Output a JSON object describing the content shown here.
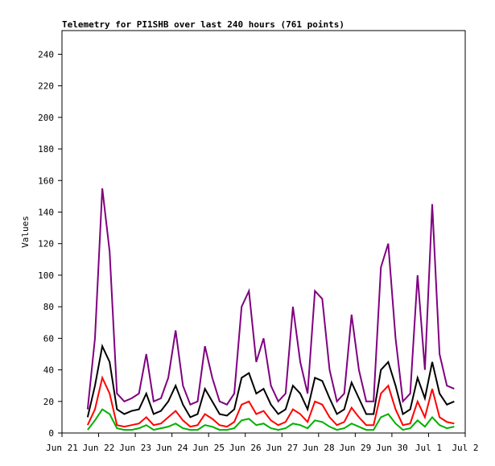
{
  "chart_data": {
    "type": "line",
    "title": "Telemetry for PI1SHB over last 240 hours (761 points)",
    "y_label": "Values",
    "x": [
      0.7,
      0.9,
      1.1,
      1.3,
      1.5,
      1.7,
      1.9,
      2.1,
      2.3,
      2.5,
      2.7,
      2.9,
      3.1,
      3.3,
      3.5,
      3.7,
      3.9,
      4.1,
      4.3,
      4.5,
      4.7,
      4.9,
      5.1,
      5.3,
      5.5,
      5.7,
      5.9,
      6.1,
      6.3,
      6.5,
      6.7,
      6.9,
      7.1,
      7.3,
      7.5,
      7.7,
      7.9,
      8.1,
      8.3,
      8.5,
      8.7,
      8.9,
      9.1,
      9.3,
      9.5,
      9.7,
      9.9,
      10.1,
      10.3,
      10.5,
      10.7
    ],
    "series": [
      {
        "color": "#800080",
        "values": [
          15,
          60,
          155,
          115,
          25,
          20,
          22,
          25,
          50,
          20,
          22,
          35,
          65,
          30,
          18,
          20,
          55,
          35,
          20,
          18,
          25,
          80,
          90,
          45,
          60,
          30,
          20,
          25,
          80,
          45,
          25,
          90,
          85,
          40,
          20,
          25,
          75,
          40,
          20,
          20,
          105,
          120,
          60,
          20,
          25,
          100,
          40,
          145,
          50,
          30,
          28
        ]
      },
      {
        "color": "#000000",
        "values": [
          10,
          30,
          55,
          45,
          15,
          12,
          14,
          15,
          25,
          12,
          14,
          20,
          30,
          18,
          10,
          12,
          28,
          20,
          12,
          11,
          15,
          35,
          38,
          25,
          28,
          18,
          12,
          15,
          30,
          25,
          15,
          35,
          33,
          22,
          12,
          15,
          32,
          22,
          12,
          12,
          40,
          45,
          30,
          12,
          15,
          35,
          22,
          45,
          25,
          18,
          20
        ]
      },
      {
        "color": "#ff0000",
        "values": [
          5,
          15,
          35,
          25,
          5,
          4,
          5,
          6,
          10,
          5,
          6,
          10,
          14,
          8,
          4,
          5,
          12,
          9,
          5,
          4,
          7,
          18,
          20,
          12,
          14,
          8,
          5,
          7,
          15,
          12,
          7,
          20,
          18,
          10,
          5,
          7,
          16,
          10,
          5,
          5,
          25,
          30,
          15,
          5,
          6,
          20,
          10,
          28,
          10,
          7,
          6
        ]
      },
      {
        "color": "#00b000",
        "values": [
          2,
          8,
          15,
          12,
          3,
          2,
          2,
          3,
          5,
          2,
          3,
          4,
          6,
          3,
          2,
          2,
          5,
          4,
          2,
          2,
          3,
          8,
          9,
          5,
          6,
          3,
          2,
          3,
          6,
          5,
          3,
          8,
          7,
          4,
          2,
          3,
          6,
          4,
          2,
          2,
          10,
          12,
          6,
          2,
          3,
          8,
          4,
          10,
          5,
          3,
          4
        ]
      }
    ],
    "xlim": [
      0,
      11
    ],
    "xticks": [
      {
        "value": 0,
        "label": "Jun 21"
      },
      {
        "value": 1,
        "label": "Jun 22"
      },
      {
        "value": 2,
        "label": "Jun 23"
      },
      {
        "value": 3,
        "label": "Jun 24"
      },
      {
        "value": 4,
        "label": "Jun 25"
      },
      {
        "value": 5,
        "label": "Jun 26"
      },
      {
        "value": 6,
        "label": "Jun 27"
      },
      {
        "value": 7,
        "label": "Jun 28"
      },
      {
        "value": 8,
        "label": "Jun 29"
      },
      {
        "value": 9,
        "label": "Jun 30"
      },
      {
        "value": 10,
        "label": "Jul 1"
      },
      {
        "value": 11,
        "label": "Jul 2"
      }
    ],
    "ylim": [
      0,
      255
    ],
    "yticks": [
      0,
      20,
      40,
      60,
      80,
      100,
      120,
      140,
      160,
      180,
      200,
      220,
      240
    ],
    "grid": false
  }
}
